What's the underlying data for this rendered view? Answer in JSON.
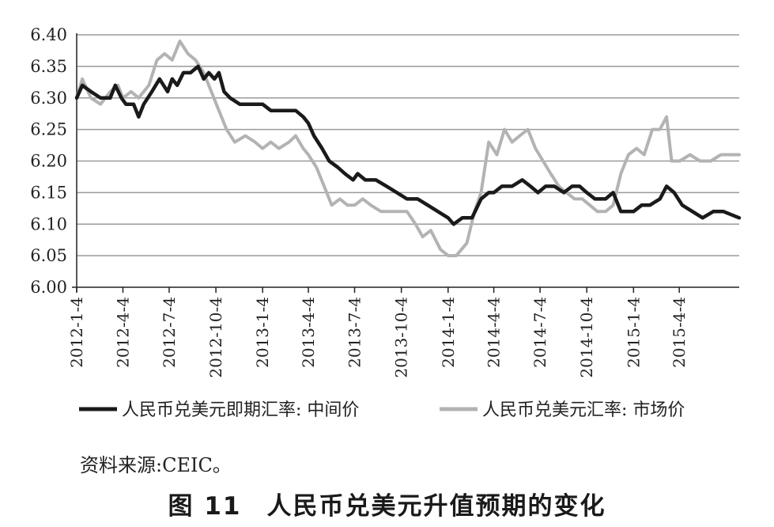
{
  "source": "资料来源:CEIC。",
  "caption": {
    "label": "图 11",
    "title": "人民币兑美元升值预期的变化"
  },
  "colors": {
    "mid": "#1a1a1a",
    "market": "#b3b3b3",
    "grid": "#9a9a9a",
    "axis": "#222222"
  },
  "chart_data": {
    "type": "line",
    "title": "",
    "xlabel": "",
    "ylabel": "",
    "ylim": [
      6.0,
      6.4
    ],
    "yticks": [
      "6.00",
      "6.05",
      "6.10",
      "6.15",
      "6.20",
      "6.25",
      "6.30",
      "6.35",
      "6.40"
    ],
    "x_start": "2012-1-4",
    "x_end": "2015-7-31",
    "xticks": [
      "2012-1-4",
      "2012-4-4",
      "2012-7-4",
      "2012-10-4",
      "2013-1-4",
      "2013-4-4",
      "2013-7-4",
      "2013-10-4",
      "2014-1-4",
      "2014-4-4",
      "2014-7-4",
      "2014-10-4",
      "2015-1-4",
      "2015-4-4"
    ],
    "grid": "horizontal",
    "legend_position": "bottom",
    "series": [
      {
        "name": "人民币兑美元即期汇率: 中间价",
        "color": "#1a1a1a",
        "points": [
          [
            "2012-1-4",
            6.3
          ],
          [
            "2012-1-15",
            6.32
          ],
          [
            "2012-2-1",
            6.31
          ],
          [
            "2012-2-20",
            6.3
          ],
          [
            "2012-3-10",
            6.3
          ],
          [
            "2012-3-20",
            6.32
          ],
          [
            "2012-4-1",
            6.3
          ],
          [
            "2012-4-10",
            6.29
          ],
          [
            "2012-4-25",
            6.29
          ],
          [
            "2012-5-5",
            6.27
          ],
          [
            "2012-5-15",
            6.29
          ],
          [
            "2012-5-31",
            6.31
          ],
          [
            "2012-6-15",
            6.33
          ],
          [
            "2012-7-1",
            6.31
          ],
          [
            "2012-7-10",
            6.33
          ],
          [
            "2012-7-20",
            6.32
          ],
          [
            "2012-8-1",
            6.34
          ],
          [
            "2012-8-15",
            6.34
          ],
          [
            "2012-8-30",
            6.35
          ],
          [
            "2012-9-10",
            6.33
          ],
          [
            "2012-9-20",
            6.34
          ],
          [
            "2012-10-1",
            6.33
          ],
          [
            "2012-10-10",
            6.34
          ],
          [
            "2012-10-20",
            6.31
          ],
          [
            "2012-11-1",
            6.3
          ],
          [
            "2012-11-20",
            6.29
          ],
          [
            "2012-12-10",
            6.29
          ],
          [
            "2013-1-4",
            6.29
          ],
          [
            "2013-1-20",
            6.28
          ],
          [
            "2013-2-1",
            6.28
          ],
          [
            "2013-2-20",
            6.28
          ],
          [
            "2013-3-10",
            6.28
          ],
          [
            "2013-3-25",
            6.27
          ],
          [
            "2013-4-4",
            6.26
          ],
          [
            "2013-4-15",
            6.24
          ],
          [
            "2013-5-1",
            6.22
          ],
          [
            "2013-5-15",
            6.2
          ],
          [
            "2013-6-1",
            6.19
          ],
          [
            "2013-6-15",
            6.18
          ],
          [
            "2013-7-1",
            6.17
          ],
          [
            "2013-7-10",
            6.18
          ],
          [
            "2013-7-25",
            6.17
          ],
          [
            "2013-8-15",
            6.17
          ],
          [
            "2013-9-5",
            6.16
          ],
          [
            "2013-9-25",
            6.15
          ],
          [
            "2013-10-15",
            6.14
          ],
          [
            "2013-11-5",
            6.14
          ],
          [
            "2013-11-25",
            6.13
          ],
          [
            "2013-12-15",
            6.12
          ],
          [
            "2014-1-4",
            6.11
          ],
          [
            "2014-1-15",
            6.1
          ],
          [
            "2014-2-1",
            6.11
          ],
          [
            "2014-2-20",
            6.11
          ],
          [
            "2014-3-10",
            6.14
          ],
          [
            "2014-3-25",
            6.15
          ],
          [
            "2014-4-4",
            6.15
          ],
          [
            "2014-4-20",
            6.16
          ],
          [
            "2014-5-10",
            6.16
          ],
          [
            "2014-5-30",
            6.17
          ],
          [
            "2014-6-15",
            6.16
          ],
          [
            "2014-6-30",
            6.15
          ],
          [
            "2014-7-15",
            6.16
          ],
          [
            "2014-8-1",
            6.16
          ],
          [
            "2014-8-20",
            6.15
          ],
          [
            "2014-9-5",
            6.16
          ],
          [
            "2014-9-20",
            6.16
          ],
          [
            "2014-10-4",
            6.15
          ],
          [
            "2014-10-20",
            6.14
          ],
          [
            "2014-11-10",
            6.14
          ],
          [
            "2014-11-25",
            6.15
          ],
          [
            "2014-12-10",
            6.12
          ],
          [
            "2015-1-4",
            6.12
          ],
          [
            "2015-1-20",
            6.13
          ],
          [
            "2015-2-5",
            6.13
          ],
          [
            "2015-2-25",
            6.14
          ],
          [
            "2015-3-10",
            6.16
          ],
          [
            "2015-3-25",
            6.15
          ],
          [
            "2015-4-10",
            6.13
          ],
          [
            "2015-4-30",
            6.12
          ],
          [
            "2015-5-20",
            6.11
          ],
          [
            "2015-6-10",
            6.12
          ],
          [
            "2015-6-30",
            6.12
          ],
          [
            "2015-7-31",
            6.11
          ]
        ]
      },
      {
        "name": "人民币兑美元汇率: 市场价",
        "color": "#b3b3b3",
        "points": [
          [
            "2012-1-4",
            6.3
          ],
          [
            "2012-1-15",
            6.33
          ],
          [
            "2012-2-1",
            6.3
          ],
          [
            "2012-2-20",
            6.29
          ],
          [
            "2012-3-10",
            6.31
          ],
          [
            "2012-3-25",
            6.32
          ],
          [
            "2012-4-4",
            6.3
          ],
          [
            "2012-4-20",
            6.31
          ],
          [
            "2012-5-5",
            6.3
          ],
          [
            "2012-5-25",
            6.32
          ],
          [
            "2012-6-10",
            6.36
          ],
          [
            "2012-6-25",
            6.37
          ],
          [
            "2012-7-10",
            6.36
          ],
          [
            "2012-7-25",
            6.39
          ],
          [
            "2012-8-10",
            6.37
          ],
          [
            "2012-8-25",
            6.36
          ],
          [
            "2012-9-10",
            6.34
          ],
          [
            "2012-9-25",
            6.31
          ],
          [
            "2012-10-10",
            6.28
          ],
          [
            "2012-10-25",
            6.25
          ],
          [
            "2012-11-10",
            6.23
          ],
          [
            "2012-12-1",
            6.24
          ],
          [
            "2012-12-20",
            6.23
          ],
          [
            "2013-1-4",
            6.22
          ],
          [
            "2013-1-20",
            6.23
          ],
          [
            "2013-2-5",
            6.22
          ],
          [
            "2013-2-25",
            6.23
          ],
          [
            "2013-3-10",
            6.24
          ],
          [
            "2013-3-25",
            6.22
          ],
          [
            "2013-4-4",
            6.21
          ],
          [
            "2013-4-20",
            6.19
          ],
          [
            "2013-5-5",
            6.16
          ],
          [
            "2013-5-20",
            6.13
          ],
          [
            "2013-6-5",
            6.14
          ],
          [
            "2013-6-20",
            6.13
          ],
          [
            "2013-7-4",
            6.13
          ],
          [
            "2013-7-20",
            6.14
          ],
          [
            "2013-8-5",
            6.13
          ],
          [
            "2013-8-25",
            6.12
          ],
          [
            "2013-9-20",
            6.12
          ],
          [
            "2013-10-15",
            6.12
          ],
          [
            "2013-11-1",
            6.1
          ],
          [
            "2013-11-15",
            6.08
          ],
          [
            "2013-12-1",
            6.09
          ],
          [
            "2013-12-20",
            6.06
          ],
          [
            "2014-1-4",
            6.05
          ],
          [
            "2014-1-20",
            6.05
          ],
          [
            "2014-2-10",
            6.07
          ],
          [
            "2014-2-25",
            6.12
          ],
          [
            "2014-3-10",
            6.15
          ],
          [
            "2014-3-25",
            6.23
          ],
          [
            "2014-4-10",
            6.21
          ],
          [
            "2014-4-25",
            6.25
          ],
          [
            "2014-5-10",
            6.23
          ],
          [
            "2014-5-25",
            6.24
          ],
          [
            "2014-6-10",
            6.25
          ],
          [
            "2014-6-25",
            6.22
          ],
          [
            "2014-7-10",
            6.2
          ],
          [
            "2014-7-25",
            6.18
          ],
          [
            "2014-8-10",
            6.16
          ],
          [
            "2014-8-25",
            6.15
          ],
          [
            "2014-9-10",
            6.14
          ],
          [
            "2014-9-25",
            6.14
          ],
          [
            "2014-10-10",
            6.13
          ],
          [
            "2014-10-25",
            6.12
          ],
          [
            "2014-11-10",
            6.12
          ],
          [
            "2014-11-25",
            6.13
          ],
          [
            "2014-12-10",
            6.18
          ],
          [
            "2014-12-25",
            6.21
          ],
          [
            "2015-1-10",
            6.22
          ],
          [
            "2015-1-25",
            6.21
          ],
          [
            "2015-2-10",
            6.25
          ],
          [
            "2015-2-25",
            6.25
          ],
          [
            "2015-3-10",
            6.27
          ],
          [
            "2015-3-20",
            6.2
          ],
          [
            "2015-4-5",
            6.2
          ],
          [
            "2015-4-25",
            6.21
          ],
          [
            "2015-5-15",
            6.2
          ],
          [
            "2015-6-5",
            6.2
          ],
          [
            "2015-6-25",
            6.21
          ],
          [
            "2015-7-31",
            6.21
          ]
        ]
      }
    ]
  }
}
